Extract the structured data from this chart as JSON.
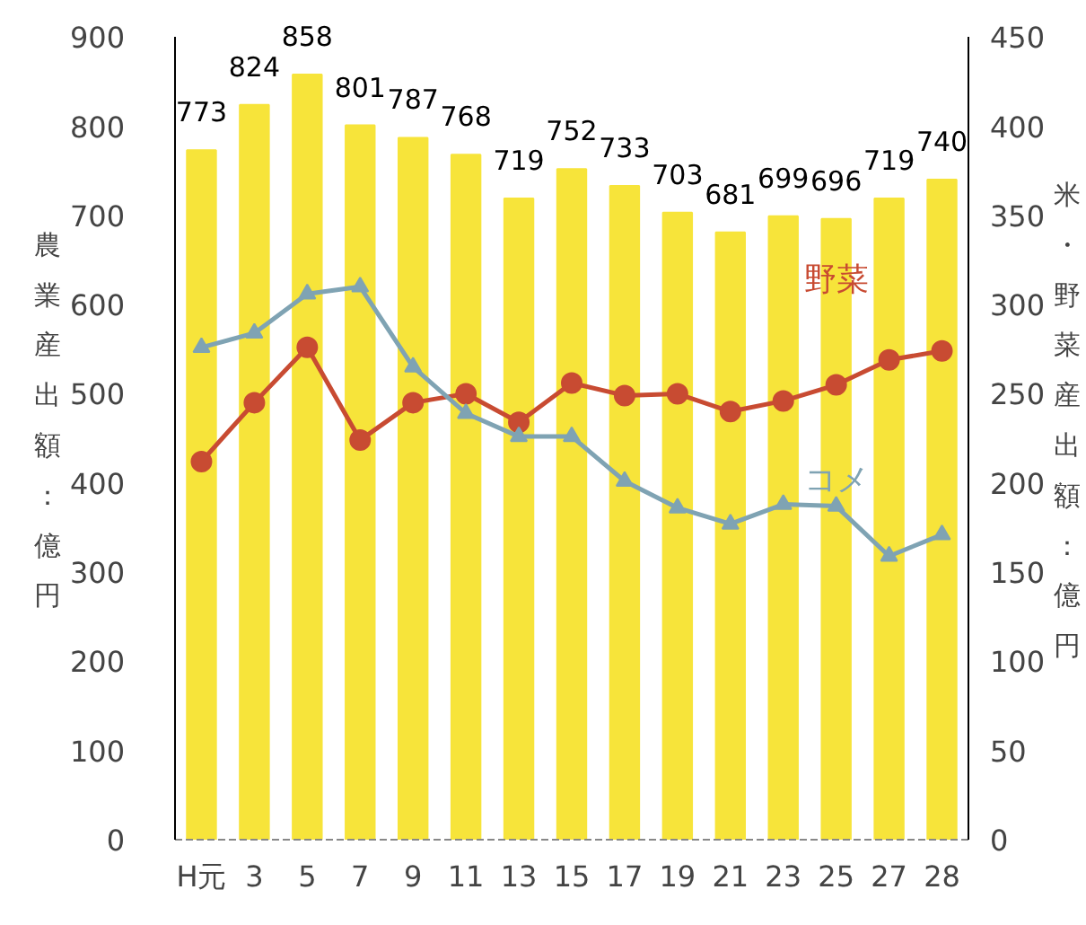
{
  "chart_data": {
    "type": "bar",
    "categories": [
      "H元",
      "3",
      "5",
      "7",
      "9",
      "11",
      "13",
      "15",
      "17",
      "19",
      "21",
      "23",
      "25",
      "27",
      "28"
    ],
    "ylabel": "農業産出額：億円",
    "y2label": "米・野菜産出額：億円",
    "ylim": [
      0,
      900
    ],
    "yticks": [
      0,
      100,
      200,
      300,
      400,
      500,
      600,
      700,
      800,
      900
    ],
    "y2lim": [
      0,
      450
    ],
    "y2ticks": [
      0,
      50,
      100,
      150,
      200,
      250,
      300,
      350,
      400,
      450
    ],
    "grid": false,
    "legend": false,
    "data_labels": true,
    "series": [
      {
        "color": "#f7e43a",
        "values": [
          773,
          824,
          858,
          801,
          787,
          768,
          719,
          752,
          733,
          703,
          681,
          699,
          696,
          719,
          740
        ]
      },
      {
        "type": "line",
        "axis": "y2",
        "name": "野菜",
        "data_labels": false,
        "color": "#c84b32",
        "marker": "circle",
        "values": [
          212,
          245,
          276,
          224,
          245,
          250,
          234,
          256,
          249,
          250,
          240,
          246,
          255,
          269,
          274
        ]
      },
      {
        "type": "line",
        "axis": "y2",
        "name": "コメ",
        "data_labels": false,
        "color": "#7fa3b3",
        "marker": "triangle",
        "values": [
          276,
          284,
          306,
          310,
          265,
          239,
          226,
          226,
          201,
          186,
          177,
          188,
          187,
          159,
          171
        ]
      }
    ]
  }
}
